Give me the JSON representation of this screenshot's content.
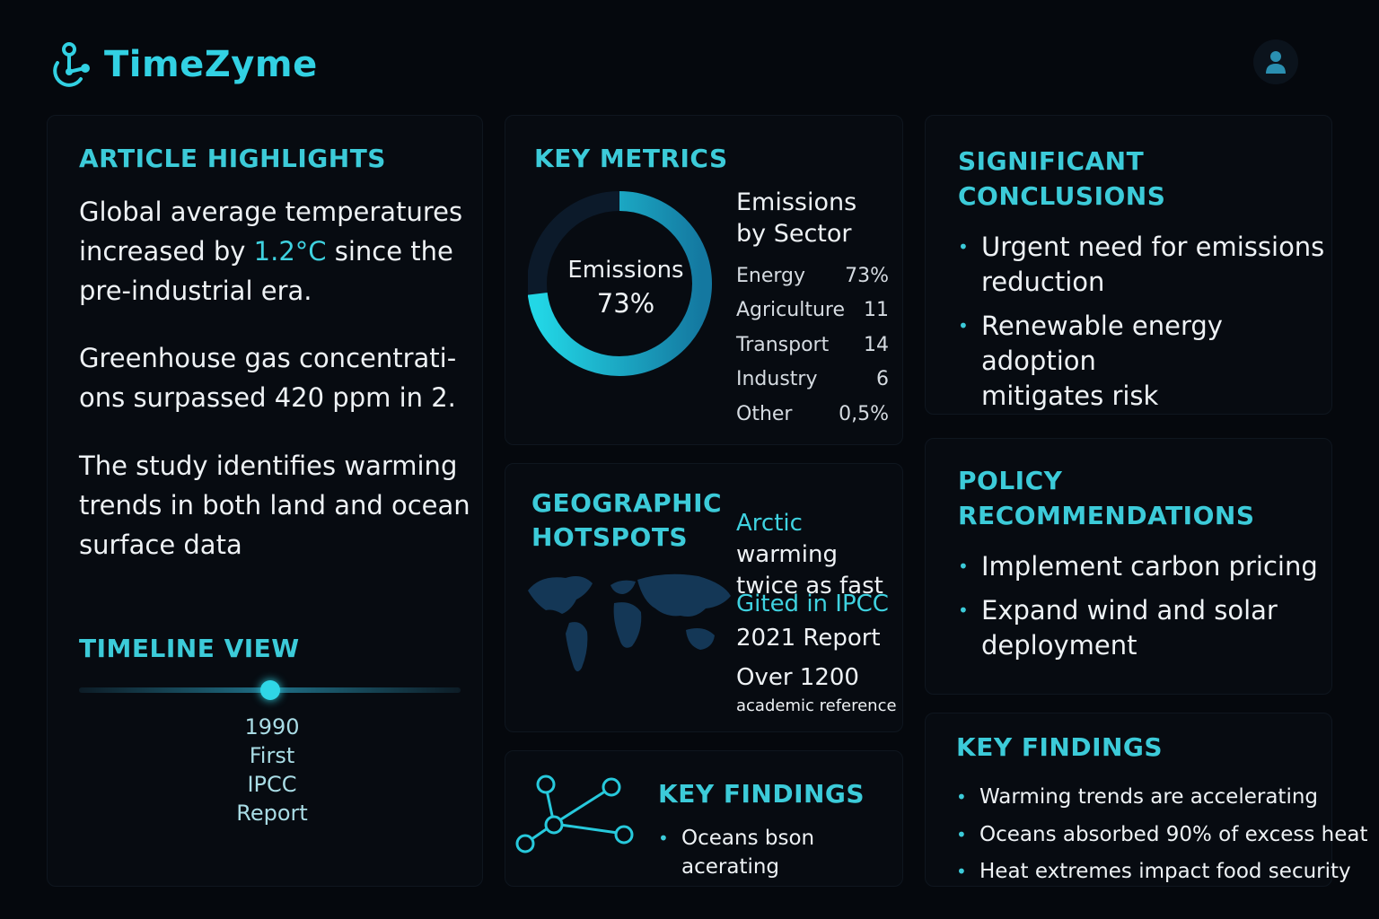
{
  "header": {
    "app_name": "TimeZyme",
    "logo_icon": "molecule-logo-icon",
    "user_icon": "user-icon"
  },
  "highlights": {
    "title": "ARTICLE HIGHLIGHTS",
    "p1_before": "Global average temperatures increased by ",
    "p1_highlight": "1.2°C",
    "p1_after": " since the pre-industrial era.",
    "p2": "Greenhouse gas concentrati-ons surpassed 420 ppm in 2.",
    "p3": "The study identifies warming trends in both land and ocean surface data"
  },
  "timeline": {
    "title": "TIMELINE VIEW",
    "marker_year": "1990",
    "marker_line2": "First",
    "marker_line3": "IPCC",
    "marker_line4": "Report",
    "position_fraction": 0.5
  },
  "metrics": {
    "title": "KEY METRICS",
    "donut_label": "Emissions",
    "donut_value": "73%",
    "donut_fraction": 0.73,
    "sector_title": "Emissions by Sector",
    "sectors": [
      {
        "name": "Energy",
        "value": "73%"
      },
      {
        "name": "Agriculture",
        "value": "11"
      },
      {
        "name": "Transport",
        "value": "14"
      },
      {
        "name": "Industry",
        "value": "6"
      },
      {
        "name": "Other",
        "value": "0,5%"
      }
    ]
  },
  "hotspots": {
    "title_line1": "GEOGRAPHIC",
    "title_line2": "HOTSPOTS",
    "arctic_word": "Arctic",
    "arctic_rest1": " warming",
    "arctic_rest2": "twice as fast",
    "cited_line1": "Gited in IPCC",
    "cited_line2": "2021 Report",
    "refs_line1": "Over 1200",
    "refs_line2": "academic reference",
    "map_icon": "world-map-icon"
  },
  "key_findings_small": {
    "title": "KEY FINDINGS",
    "network_icon": "network-icon",
    "items": [
      "Oceans bson acerating"
    ]
  },
  "conclusions": {
    "title_line1": "SIGNIFICANT",
    "title_line2": "CONCLUSIONS",
    "items": [
      {
        "line1": "Urgent need for emissions",
        "line2": "reduction"
      },
      {
        "line1": "Renewable energy adoption",
        "line2": "mitigates risk"
      }
    ]
  },
  "policy": {
    "title_line1": "POLICY",
    "title_line2": "RECOMMENDATIONS",
    "items": [
      {
        "line1": "Implement carbon pricing",
        "line2": ""
      },
      {
        "line1": "Expand wind and solar",
        "line2": "deployment"
      }
    ]
  },
  "key_findings": {
    "title": "KEY FINDINGS",
    "items": [
      "Warming trends are accelerating",
      "Oceans absorbed 90% of excess heat",
      "Heat extremes impact food security"
    ]
  },
  "colors": {
    "accent": "#3ccbd9",
    "background": "#05080d",
    "panel": "#070b11"
  }
}
